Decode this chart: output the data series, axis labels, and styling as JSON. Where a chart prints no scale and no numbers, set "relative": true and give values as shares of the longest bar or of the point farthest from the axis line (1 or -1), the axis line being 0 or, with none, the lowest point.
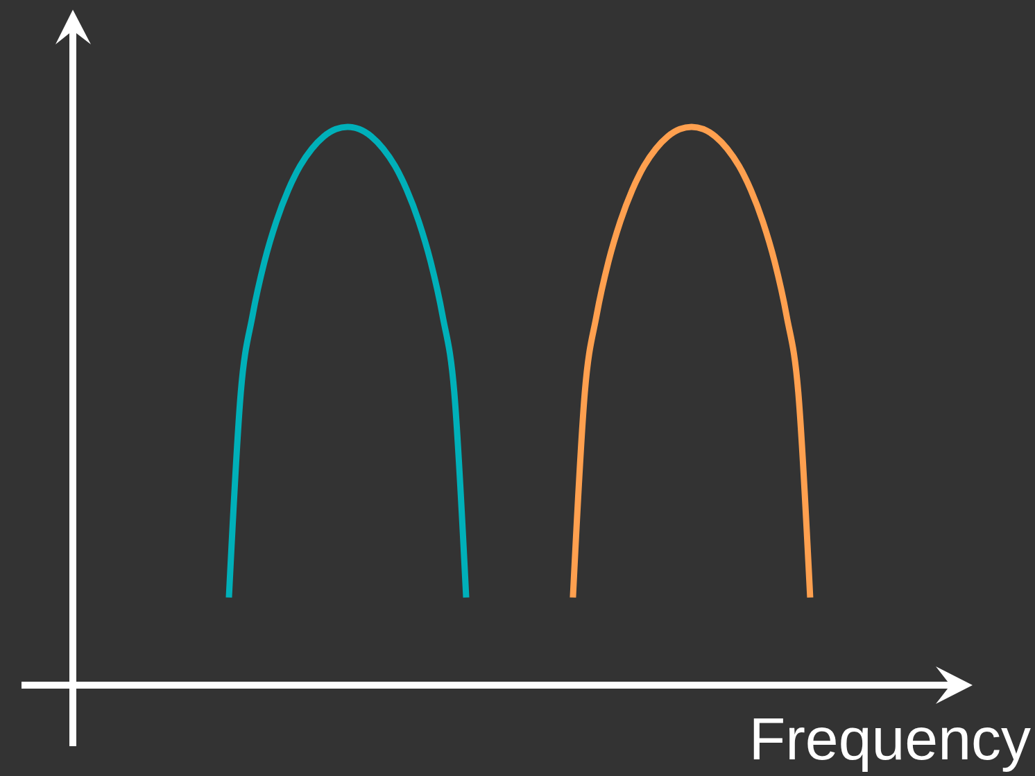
{
  "chart_data": {
    "type": "line",
    "relative": true,
    "xlabel": "Frequency",
    "line_style": "solid",
    "categories": [
      null,
      null,
      null,
      null,
      null,
      null,
      null,
      null,
      null,
      null,
      null,
      null,
      null,
      null,
      null,
      null,
      null,
      null,
      null,
      null,
      null,
      null,
      null,
      null,
      null,
      null,
      null,
      null,
      null,
      null,
      null,
      null,
      null,
      null,
      null,
      null,
      null,
      null,
      null,
      null,
      null,
      null,
      null,
      null,
      null,
      null,
      null,
      null,
      null,
      null
    ],
    "series": [
      {
        "color": "#00b0b9",
        "values": [
          0.157,
          0.524,
          0.663,
          0.759,
          0.831,
          0.887,
          0.93,
          0.961,
          0.983,
          0.996,
          1,
          0.996,
          0.983,
          0.961,
          0.93,
          0.887,
          0.831,
          0.759,
          0.663,
          0.524,
          0.157,
          null,
          null,
          null,
          null,
          null,
          null,
          null,
          null,
          null,
          null,
          null,
          null,
          null,
          null,
          null,
          null,
          null,
          null,
          null,
          null,
          null,
          null,
          null,
          null,
          null,
          null,
          null,
          null,
          null
        ]
      },
      {
        "color": "#ffa04f",
        "values": [
          null,
          null,
          null,
          null,
          null,
          null,
          null,
          null,
          null,
          null,
          null,
          null,
          null,
          null,
          null,
          null,
          null,
          null,
          null,
          null,
          null,
          null,
          null,
          null,
          null,
          null,
          null,
          null,
          null,
          0.157,
          0.524,
          0.663,
          0.759,
          0.831,
          0.887,
          0.93,
          0.961,
          0.983,
          0.996,
          1,
          0.996,
          0.983,
          0.961,
          0.93,
          0.887,
          0.831,
          0.759,
          0.663,
          0.524,
          0.157
        ]
      }
    ]
  }
}
